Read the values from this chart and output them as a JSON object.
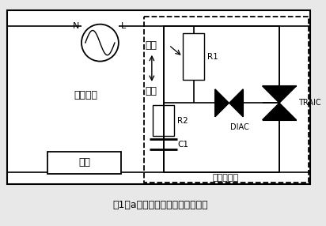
{
  "title": "图1（a）所示为可控硅调光器示意",
  "bg_color": "#e8e8e8",
  "label_ac": "交流输入",
  "label_load": "负载",
  "label_bright": "明亮",
  "label_dim": "昏暗",
  "label_r1": "R1",
  "label_r2": "R2",
  "label_c1": "C1",
  "label_diac": "DIAC",
  "label_triac": "TRAIC",
  "label_dimmer": "可控硅调光",
  "label_n": "N",
  "label_l": "L"
}
